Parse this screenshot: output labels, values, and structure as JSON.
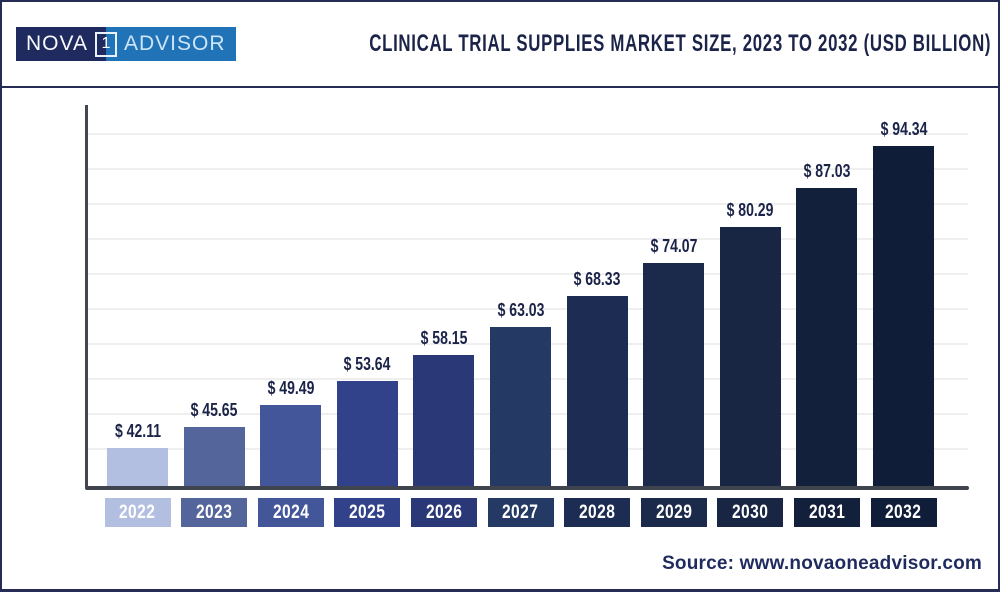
{
  "logo": {
    "nova": "NOVA",
    "one": "1",
    "advisor": "ADVISOR"
  },
  "header": {
    "title": "CLINICAL TRIAL SUPPLIES MARKET SIZE, 2023 TO 2032 (USD BILLION)"
  },
  "chart_data": {
    "type": "bar",
    "title": "Clinical Trial Supplies Market Size, 2023 to 2032 (USD Billion)",
    "categories": [
      "2022",
      "2023",
      "2024",
      "2025",
      "2026",
      "2027",
      "2028",
      "2029",
      "2030",
      "2031",
      "2032"
    ],
    "values": [
      42.11,
      45.65,
      49.49,
      53.64,
      58.15,
      63.03,
      68.33,
      74.07,
      80.29,
      87.03,
      94.34
    ],
    "value_prefix": "$ ",
    "bar_colors": [
      "#b3bfe1",
      "#53659b",
      "#44569a",
      "#31428a",
      "#2a3877",
      "#243a64",
      "#1d2c52",
      "#1b2a4a",
      "#182643",
      "#13203c",
      "#0f1d38"
    ],
    "xlabel": "",
    "ylabel": "",
    "ylim": [
      35.5,
      101.4
    ],
    "grid": true,
    "legend": false,
    "value_label_color": "#1b2348",
    "axis_color": "#3f444d",
    "gridline_color": "#efefef"
  },
  "footer": {
    "source": "Source: www.novaoneadvisor.com"
  }
}
